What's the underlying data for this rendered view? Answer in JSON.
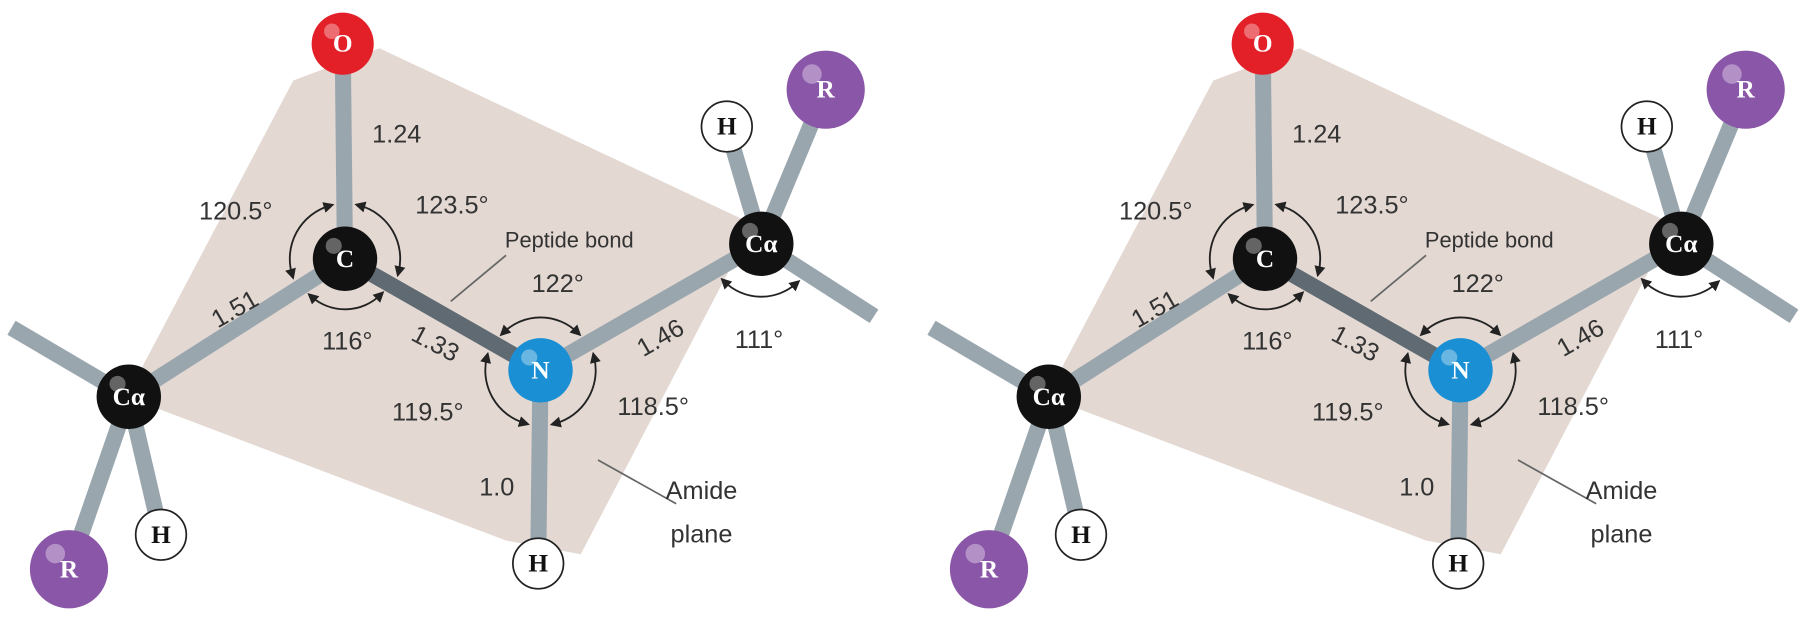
{
  "panels": [
    {
      "atoms": [
        "O",
        "C",
        "N",
        "Cα",
        "Cα",
        "R",
        "H",
        "R",
        "H",
        "H"
      ],
      "bond_lengths": [
        "1.24",
        "1.51",
        "1.33",
        "1.46",
        "1.0"
      ],
      "angles": [
        "120.5°",
        "123.5°",
        "116°",
        "122°",
        "111°",
        "119.5°",
        "118.5°"
      ],
      "annotations": [
        "Peptide bond",
        "Amide",
        "plane"
      ]
    },
    {
      "atoms": [
        "O",
        "C",
        "N",
        "Cα",
        "Cα",
        "R",
        "H",
        "R",
        "H",
        "H"
      ],
      "bond_lengths": [
        "1.24",
        "1.51",
        "1.33",
        "1.46",
        "1.0"
      ],
      "angles": [
        "120.5°",
        "123.5°",
        "116°",
        "122°",
        "111°",
        "119.5°",
        "118.5°"
      ],
      "annotations": [
        "Peptide bond",
        "Amide",
        "plane"
      ]
    }
  ]
}
